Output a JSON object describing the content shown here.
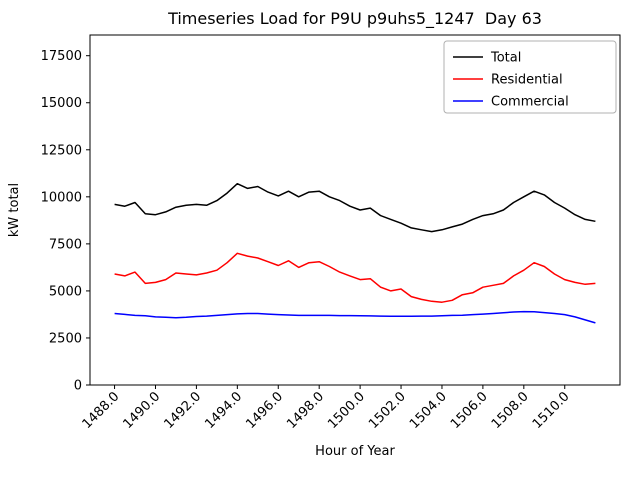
{
  "chart_data": {
    "type": "line",
    "title": "Timeseries Load for P9U p9uhs5_1247  Day 63",
    "xlabel": "Hour of Year",
    "ylabel": "kW total",
    "xlim": [
      1486.8,
      1512.7
    ],
    "ylim": [
      0,
      18600
    ],
    "x_ticks": [
      1488.0,
      1490.0,
      1492.0,
      1494.0,
      1496.0,
      1498.0,
      1500.0,
      1502.0,
      1504.0,
      1506.0,
      1508.0,
      1510.0
    ],
    "y_ticks": [
      0,
      2500,
      5000,
      7500,
      10000,
      12500,
      15000,
      17500
    ],
    "grid": false,
    "legend_position": "upper-right",
    "x": [
      1488.0,
      1488.5,
      1489.0,
      1489.5,
      1490.0,
      1490.5,
      1491.0,
      1491.5,
      1492.0,
      1492.5,
      1493.0,
      1493.5,
      1494.0,
      1494.5,
      1495.0,
      1495.5,
      1496.0,
      1496.5,
      1497.0,
      1497.5,
      1498.0,
      1498.5,
      1499.0,
      1499.5,
      1500.0,
      1500.5,
      1501.0,
      1501.5,
      1502.0,
      1502.5,
      1503.0,
      1503.5,
      1504.0,
      1504.5,
      1505.0,
      1505.5,
      1506.0,
      1506.5,
      1507.0,
      1507.5,
      1508.0,
      1508.5,
      1509.0,
      1509.5,
      1510.0,
      1510.5,
      1511.0,
      1511.5
    ],
    "series": [
      {
        "name": "Total",
        "color": "#000000",
        "values": [
          9600,
          9500,
          9700,
          9100,
          9050,
          9200,
          9450,
          9550,
          9600,
          9550,
          9800,
          10200,
          10700,
          10450,
          10550,
          10250,
          10050,
          10300,
          10000,
          10250,
          10300,
          10000,
          9800,
          9500,
          9300,
          9400,
          9000,
          8800,
          8600,
          8350,
          8250,
          8150,
          8250,
          8400,
          8550,
          8800,
          9000,
          9100,
          9300,
          9700,
          10000,
          10300,
          10100,
          9700,
          9400,
          9050,
          8800,
          8700
        ]
      },
      {
        "name": "Residential",
        "color": "#ff0000",
        "values": [
          5900,
          5800,
          6000,
          5400,
          5450,
          5600,
          5950,
          5900,
          5850,
          5950,
          6100,
          6500,
          7000,
          6850,
          6750,
          6550,
          6350,
          6600,
          6250,
          6500,
          6550,
          6300,
          6000,
          5800,
          5600,
          5650,
          5200,
          5000,
          5100,
          4700,
          4550,
          4450,
          4400,
          4500,
          4800,
          4900,
          5200,
          5300,
          5400,
          5800,
          6100,
          6500,
          6300,
          5900,
          5600,
          5450,
          5350,
          5400
        ]
      },
      {
        "name": "Commercial",
        "color": "#0000ff",
        "values": [
          3800,
          3750,
          3700,
          3680,
          3620,
          3600,
          3570,
          3600,
          3640,
          3660,
          3700,
          3740,
          3780,
          3800,
          3800,
          3770,
          3740,
          3720,
          3700,
          3700,
          3700,
          3700,
          3690,
          3690,
          3680,
          3670,
          3660,
          3650,
          3650,
          3650,
          3660,
          3660,
          3680,
          3700,
          3710,
          3740,
          3770,
          3800,
          3840,
          3880,
          3900,
          3890,
          3850,
          3800,
          3740,
          3620,
          3460,
          3300
        ]
      }
    ]
  },
  "legend": {
    "items": [
      {
        "label": "Total",
        "color": "#000000"
      },
      {
        "label": "Residential",
        "color": "#ff0000"
      },
      {
        "label": "Commercial",
        "color": "#0000ff"
      }
    ]
  }
}
